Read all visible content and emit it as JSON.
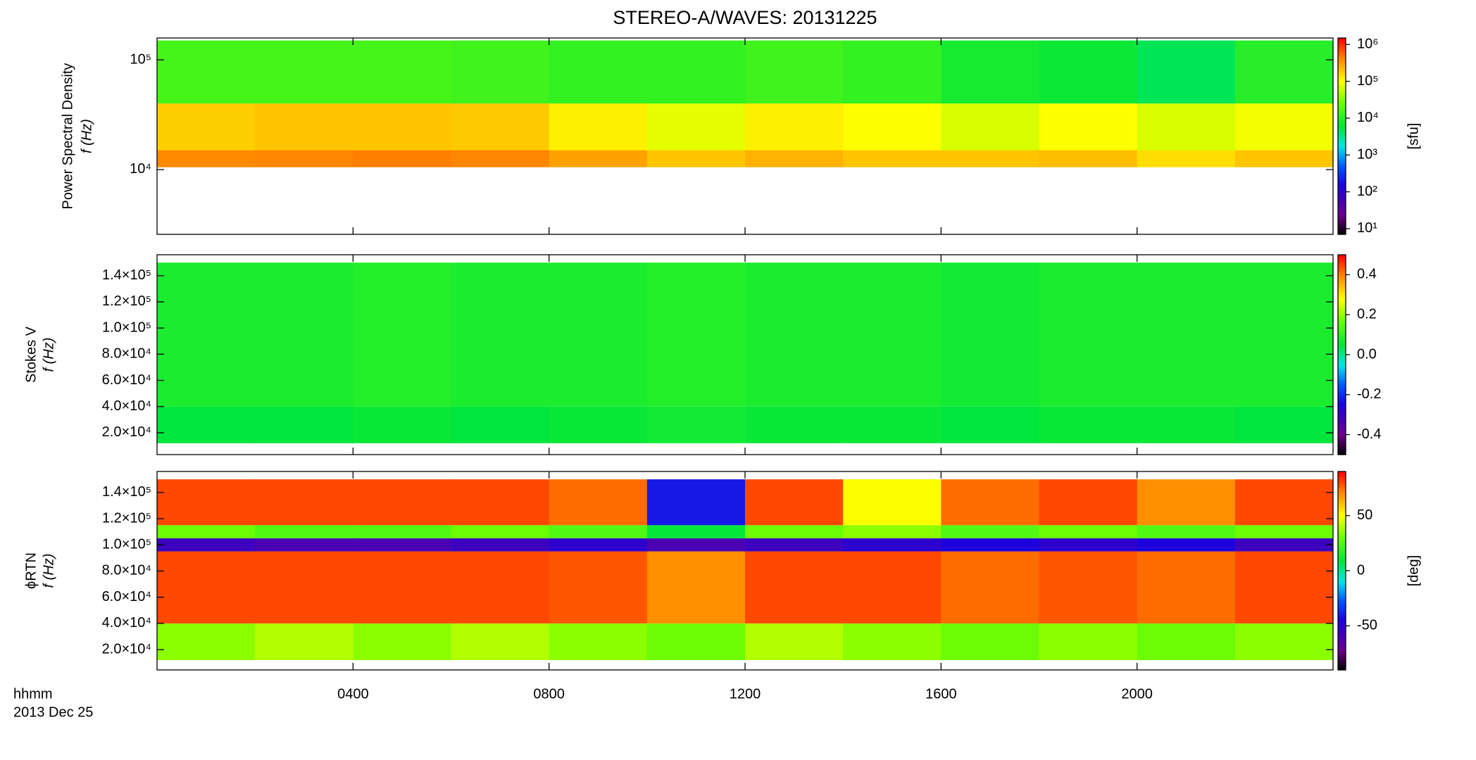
{
  "title": "STEREO-A/WAVES: 20131225",
  "x_label": [
    "hhmm",
    "2013 Dec 25"
  ],
  "chart_data": [
    {
      "type": "heatmap",
      "ylabel": [
        "Power Spectral Density",
        "f (Hz)"
      ],
      "y_scale": "log",
      "xlim": [
        0,
        24
      ],
      "ylim": [
        2570,
        158000
      ],
      "yticks": [
        {
          "value": 10000,
          "label": "10⁴"
        },
        {
          "value": 100000,
          "label": "10⁵"
        }
      ],
      "x_edges": [
        0,
        2,
        4,
        6,
        8,
        10,
        12,
        14,
        16,
        18,
        20,
        22,
        24
      ],
      "y_edges": [
        10500,
        15000,
        40000,
        150000
      ],
      "z": [
        [
          400000,
          420000,
          450000,
          420000,
          300000,
          200000,
          250000,
          200000,
          200000,
          220000,
          150000,
          200000
        ],
        [
          180000,
          200000,
          200000,
          190000,
          120000,
          80000,
          120000,
          100000,
          70000,
          100000,
          70000,
          90000
        ],
        [
          15000,
          15000,
          15000,
          14000,
          12000,
          12000,
          14000,
          12000,
          8000,
          7000,
          5000,
          10000
        ]
      ],
      "colorbar": {
        "label": "[sfu]",
        "scale": "log",
        "lim": [
          7,
          1500000
        ],
        "ticks": [
          {
            "value": 10,
            "label": "10¹"
          },
          {
            "value": 100,
            "label": "10²"
          },
          {
            "value": 1000,
            "label": "10³"
          },
          {
            "value": 10000,
            "label": "10⁴"
          },
          {
            "value": 100000,
            "label": "10⁵"
          },
          {
            "value": 1000000,
            "label": "10⁶"
          }
        ]
      }
    },
    {
      "type": "heatmap",
      "ylabel": [
        "Stokes V",
        "f (Hz)"
      ],
      "y_scale": "linear",
      "xlim": [
        0,
        24
      ],
      "ylim": [
        3300,
        156000
      ],
      "yticks": [
        {
          "value": 20000,
          "label": "2.0×10⁴"
        },
        {
          "value": 40000,
          "label": "4.0×10⁴"
        },
        {
          "value": 60000,
          "label": "6.0×10⁴"
        },
        {
          "value": 80000,
          "label": "8.0×10⁴"
        },
        {
          "value": 100000,
          "label": "1.0×10⁵"
        },
        {
          "value": 120000,
          "label": "1.2×10⁵"
        },
        {
          "value": 140000,
          "label": "1.4×10⁵"
        }
      ],
      "x_edges": [
        0,
        2,
        4,
        6,
        8,
        10,
        12,
        14,
        16,
        18,
        20,
        22,
        24
      ],
      "y_edges": [
        12000,
        40000,
        150000
      ],
      "z": [
        [
          0.05,
          0.05,
          0.06,
          0.05,
          0.06,
          0.07,
          0.06,
          0.06,
          0.05,
          0.06,
          0.06,
          0.05
        ],
        [
          0.08,
          0.08,
          0.09,
          0.08,
          0.08,
          0.09,
          0.08,
          0.08,
          0.07,
          0.08,
          0.08,
          0.08
        ]
      ],
      "colorbar": {
        "scale": "linear",
        "lim": [
          -0.5,
          0.5
        ],
        "ticks": [
          -0.4,
          -0.2,
          {
            "value": 0,
            "label": "0.0"
          },
          0.2,
          0.4
        ]
      }
    },
    {
      "type": "heatmap",
      "ylabel": [
        "ϕRTN",
        "f (Hz)"
      ],
      "y_scale": "linear",
      "xlim": [
        0,
        24
      ],
      "ylim": [
        4500,
        156000
      ],
      "xticks": [
        {
          "value": 4,
          "label": "0400"
        },
        {
          "value": 8,
          "label": "0800"
        },
        {
          "value": 12,
          "label": "1200"
        },
        {
          "value": 16,
          "label": "1600"
        },
        {
          "value": 20,
          "label": "2000"
        }
      ],
      "yticks": [
        {
          "value": 20000,
          "label": "2.0×10⁴"
        },
        {
          "value": 40000,
          "label": "4.0×10⁴"
        },
        {
          "value": 60000,
          "label": "6.0×10⁴"
        },
        {
          "value": 80000,
          "label": "8.0×10⁴"
        },
        {
          "value": 100000,
          "label": "1.0×10⁵"
        },
        {
          "value": 120000,
          "label": "1.2×10⁵"
        },
        {
          "value": 140000,
          "label": "1.4×10⁵"
        }
      ],
      "x_edges": [
        0,
        2,
        4,
        6,
        8,
        10,
        12,
        14,
        16,
        18,
        20,
        22,
        24
      ],
      "y_edges": [
        12000,
        40000,
        95000,
        105000,
        115000,
        150000
      ],
      "z": [
        [
          35,
          40,
          35,
          40,
          35,
          30,
          40,
          35,
          30,
          35,
          30,
          35
        ],
        [
          80,
          80,
          80,
          80,
          78,
          70,
          80,
          80,
          75,
          78,
          75,
          80
        ],
        [
          -55,
          -60,
          -60,
          -55,
          -50,
          -60,
          -55,
          -50,
          -45,
          -50,
          -45,
          -55
        ],
        [
          30,
          25,
          25,
          30,
          25,
          10,
          30,
          35,
          25,
          30,
          25,
          30
        ],
        [
          80,
          80,
          80,
          80,
          75,
          -40,
          80,
          50,
          75,
          80,
          70,
          80
        ]
      ],
      "colorbar": {
        "label": "[deg]",
        "scale": "linear",
        "lim": [
          -90,
          90
        ],
        "ticks": [
          -50,
          0,
          50
        ]
      }
    }
  ]
}
